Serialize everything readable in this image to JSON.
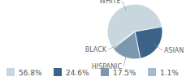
{
  "chart_data": {
    "type": "pie",
    "categories": [
      "WHITE",
      "ASIAN",
      "HISPANIC",
      "BLACK"
    ],
    "values": [
      56.8,
      24.6,
      17.5,
      1.1
    ],
    "value_labels": [
      "56.8%",
      "24.6%",
      "17.5%",
      "1.1%"
    ],
    "colors": [
      "#c8d6de",
      "#3b6287",
      "#7b98ae",
      "#a8bbca"
    ]
  }
}
